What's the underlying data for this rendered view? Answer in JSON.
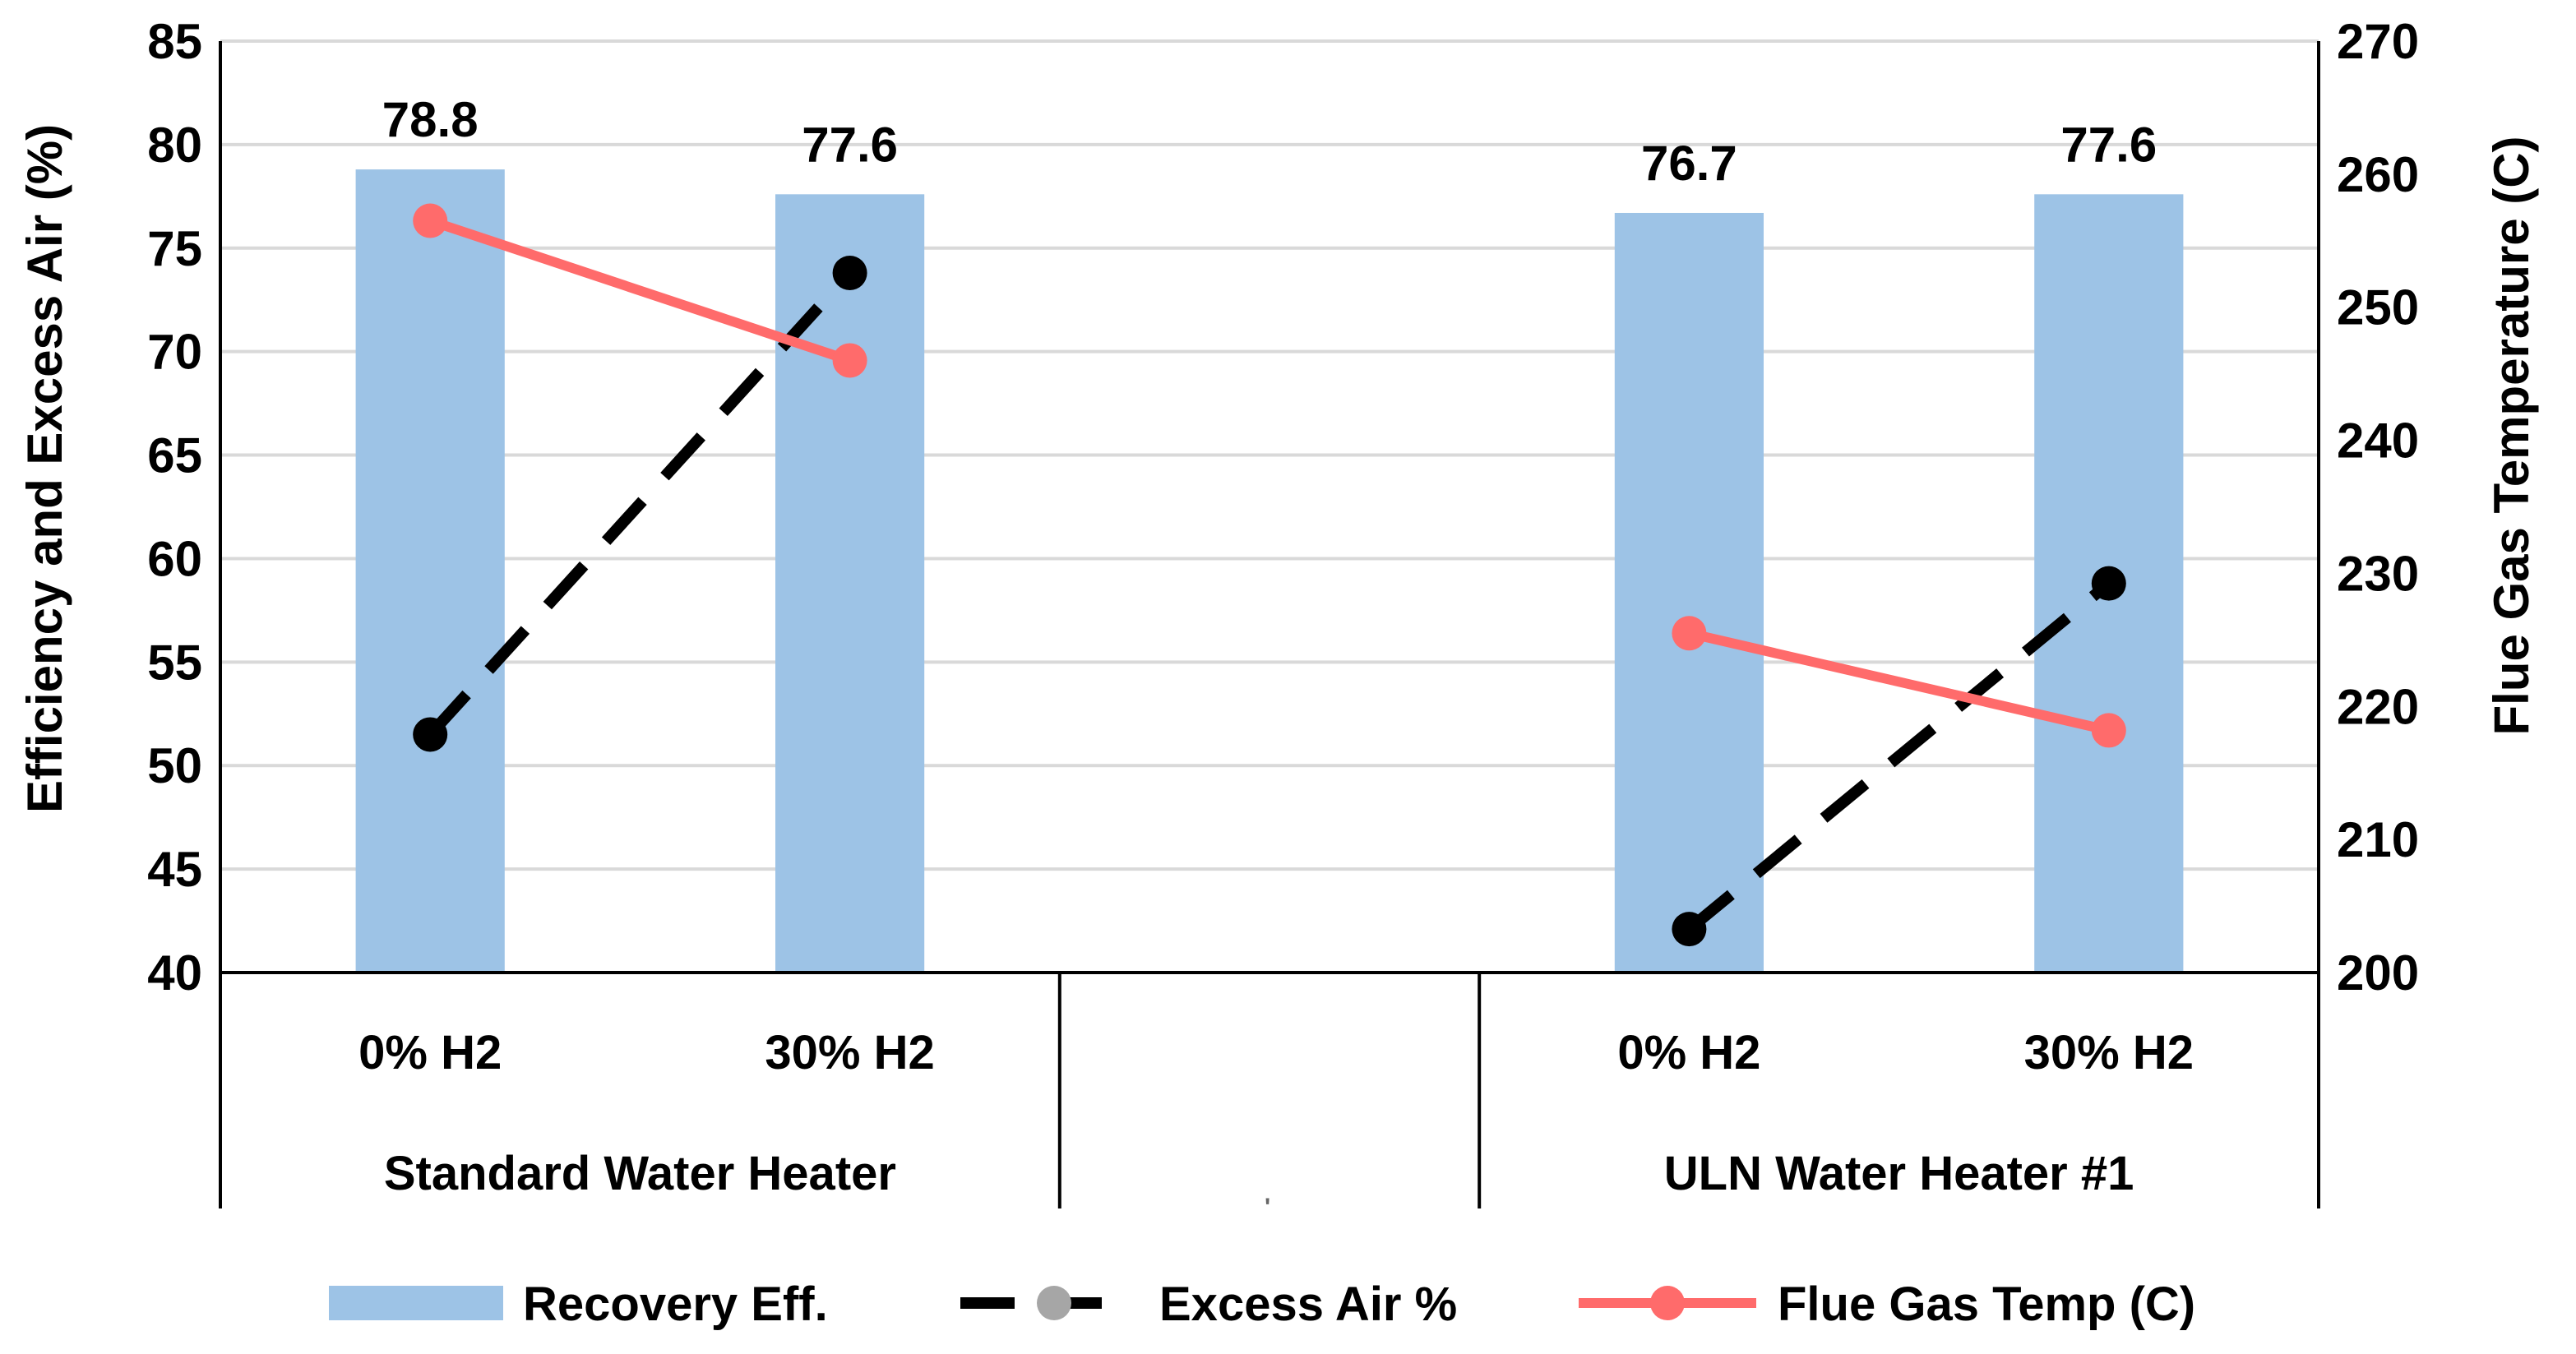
{
  "chart_data": {
    "type": "bar",
    "categories": [
      "0% H2",
      "30% H2",
      "",
      "0% H2",
      "30% H2"
    ],
    "groups": [
      {
        "label": "Standard Water Heater",
        "categories": [
          0,
          1
        ]
      },
      {
        "label": "",
        "categories": [
          2
        ]
      },
      {
        "label": "ULN Water Heater #1",
        "categories": [
          3,
          4
        ]
      }
    ],
    "series": [
      {
        "name": "Recovery Eff.",
        "kind": "bar",
        "axis": "left",
        "color": "#9DC3E6",
        "values": [
          78.8,
          77.6,
          null,
          76.7,
          77.6
        ],
        "labels": [
          "78.8",
          "77.6",
          "",
          "76.7",
          "77.6"
        ]
      },
      {
        "name": "Excess Air %",
        "kind": "line-dashed",
        "axis": "left",
        "color": "#000000",
        "legend_marker_color": "#A6A6A6",
        "segments": [
          [
            0,
            1
          ],
          [
            3,
            4
          ]
        ],
        "values": [
          51.5,
          73.8,
          null,
          42.1,
          58.8
        ]
      },
      {
        "name": "Flue Gas Temp (C)",
        "kind": "line",
        "axis": "right",
        "color": "#FF6B6B",
        "segments": [
          [
            0,
            1
          ],
          [
            3,
            4
          ]
        ],
        "values": [
          256.5,
          246.0,
          null,
          225.5,
          218.2
        ]
      }
    ],
    "ylabel": "Efficiency and Excess Air (%)",
    "y2label": "Flue Gas Temperature (C)",
    "ylim": [
      40,
      85
    ],
    "y2lim": [
      200,
      270
    ],
    "yticks": [
      "40",
      "45",
      "50",
      "55",
      "60",
      "65",
      "70",
      "75",
      "80",
      "85"
    ],
    "y2ticks": [
      "200",
      "210",
      "220",
      "230",
      "240",
      "250",
      "260",
      "270"
    ],
    "grid": true,
    "legend_position": "bottom",
    "stray_mark": "'"
  }
}
